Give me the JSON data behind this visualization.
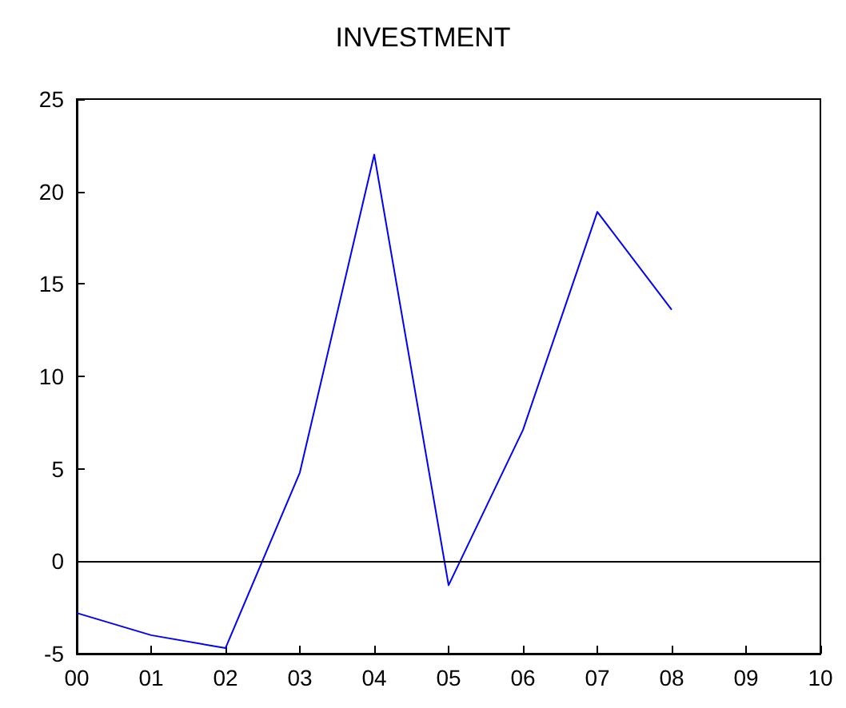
{
  "chart_data": {
    "type": "line",
    "title": "INVESTMENT",
    "categories": [
      "00",
      "01",
      "02",
      "03",
      "04",
      "05",
      "06",
      "07",
      "08",
      "09",
      "10"
    ],
    "series": [
      {
        "color": "#0000ff",
        "values": [
          -2.8,
          -4.0,
          -4.7,
          4.8,
          22.0,
          -1.3,
          7.1,
          18.9,
          13.6,
          null,
          null
        ]
      }
    ],
    "ylim": [
      -5,
      25
    ],
    "yticks": [
      -5,
      0,
      5,
      10,
      15,
      20,
      25
    ],
    "ref_lines": [
      {
        "axis": "y",
        "value": 0,
        "color": "#000000"
      }
    ],
    "grid": false,
    "marker": "none",
    "line_style": "solid"
  }
}
